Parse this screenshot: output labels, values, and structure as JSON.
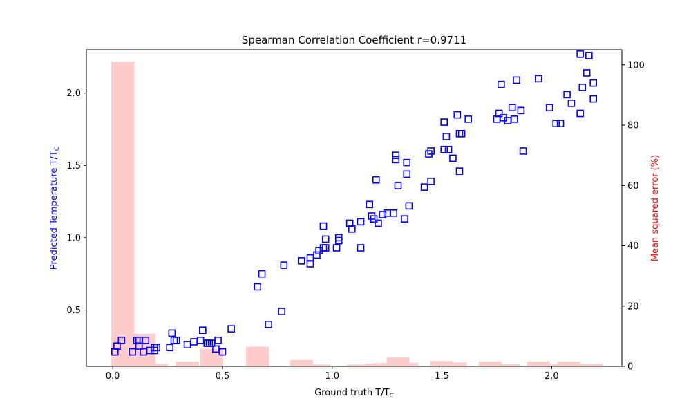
{
  "chart_data": {
    "type": "scatter",
    "title": "Spearman Correlation Coefficient r=0.9711",
    "xlabel": "Ground truth T/T",
    "xlabel_sub": "C",
    "ylabel": "Predicted Temperature T/T",
    "ylabel_sub": "C",
    "y2label": "Mean squared error (%)",
    "xlim": [
      -0.12,
      2.32
    ],
    "ylim": [
      0.11,
      2.3
    ],
    "y2lim": [
      0,
      105
    ],
    "x_ticks": [
      0.0,
      0.5,
      1.0,
      1.5,
      2.0
    ],
    "x_tick_labels": [
      "0.0",
      "0.5",
      "1.0",
      "1.5",
      "2.0"
    ],
    "y_ticks": [
      0.5,
      1.0,
      1.5,
      2.0
    ],
    "y_tick_labels": [
      "0.5",
      "1.0",
      "1.5",
      "2.0"
    ],
    "y2_ticks": [
      0,
      20,
      40,
      60,
      80,
      100
    ],
    "y2_tick_labels": [
      "0",
      "20",
      "40",
      "60",
      "80",
      "100"
    ],
    "grid": false,
    "colors": {
      "scatter": "#0000ff",
      "bars": "#ff0000",
      "bar_fill": "#ffcccc",
      "y_label": "#0000ff",
      "y2_label": "#ff0000"
    },
    "scatter": {
      "x": [
        0.01,
        0.02,
        0.04,
        0.09,
        0.11,
        0.12,
        0.12,
        0.14,
        0.15,
        0.17,
        0.19,
        0.19,
        0.2,
        0.26,
        0.27,
        0.28,
        0.29,
        0.34,
        0.37,
        0.4,
        0.41,
        0.43,
        0.44,
        0.45,
        0.47,
        0.48,
        0.5,
        0.54,
        0.66,
        0.68,
        0.71,
        0.77,
        0.78,
        0.86,
        0.9,
        0.9,
        0.93,
        0.94,
        0.96,
        0.96,
        0.97,
        0.97,
        1.02,
        1.03,
        1.03,
        1.08,
        1.09,
        1.13,
        1.13,
        1.17,
        1.18,
        1.19,
        1.2,
        1.21,
        1.23,
        1.25,
        1.28,
        1.29,
        1.29,
        1.3,
        1.33,
        1.34,
        1.34,
        1.35,
        1.42,
        1.44,
        1.45,
        1.45,
        1.51,
        1.51,
        1.52,
        1.53,
        1.55,
        1.57,
        1.58,
        1.58,
        1.59,
        1.62,
        1.75,
        1.76,
        1.77,
        1.78,
        1.8,
        1.82,
        1.83,
        1.84,
        1.86,
        1.87,
        1.94,
        1.99,
        2.02,
        2.04,
        2.07,
        2.09,
        2.13,
        2.13,
        2.14,
        2.16,
        2.17,
        2.19,
        2.19
      ],
      "y": [
        0.21,
        0.25,
        0.29,
        0.21,
        0.29,
        0.29,
        0.25,
        0.21,
        0.29,
        0.22,
        0.22,
        0.24,
        0.24,
        0.24,
        0.34,
        0.29,
        0.29,
        0.26,
        0.28,
        0.29,
        0.36,
        0.27,
        0.27,
        0.27,
        0.23,
        0.29,
        0.21,
        0.37,
        0.66,
        0.75,
        0.4,
        0.49,
        0.81,
        0.84,
        0.86,
        0.82,
        0.88,
        0.91,
        0.93,
        1.08,
        0.93,
        0.99,
        0.93,
        0.98,
        1.0,
        1.1,
        1.06,
        1.11,
        0.93,
        1.23,
        1.15,
        1.13,
        1.4,
        1.1,
        1.16,
        1.17,
        1.17,
        1.57,
        1.54,
        1.36,
        1.13,
        1.44,
        1.52,
        1.22,
        1.35,
        1.58,
        1.6,
        1.39,
        1.8,
        1.61,
        1.7,
        1.61,
        1.55,
        1.85,
        1.72,
        1.46,
        1.72,
        1.82,
        1.82,
        1.86,
        2.06,
        1.83,
        1.81,
        1.9,
        1.82,
        2.09,
        1.88,
        1.6,
        2.1,
        1.9,
        1.79,
        1.79,
        1.99,
        1.93,
        2.27,
        1.86,
        2.04,
        2.14,
        2.26,
        1.96,
        2.07
      ]
    },
    "bars": {
      "width": 0.105,
      "x": [
        0.046,
        0.143,
        0.2,
        0.34,
        0.45,
        0.66,
        0.86,
        0.94,
        1.12,
        1.2,
        1.24,
        1.3,
        1.34,
        1.5,
        1.56,
        1.72,
        1.8,
        1.94,
        2.03,
        2.08,
        2.18
      ],
      "values": [
        101,
        10.8,
        0.8,
        1.6,
        5.8,
        6.5,
        2.1,
        0.6,
        0.6,
        0.9,
        1.1,
        3.0,
        1.2,
        1.8,
        1.3,
        1.6,
        0.7,
        1.6,
        0.7,
        1.6,
        0.8
      ]
    }
  }
}
